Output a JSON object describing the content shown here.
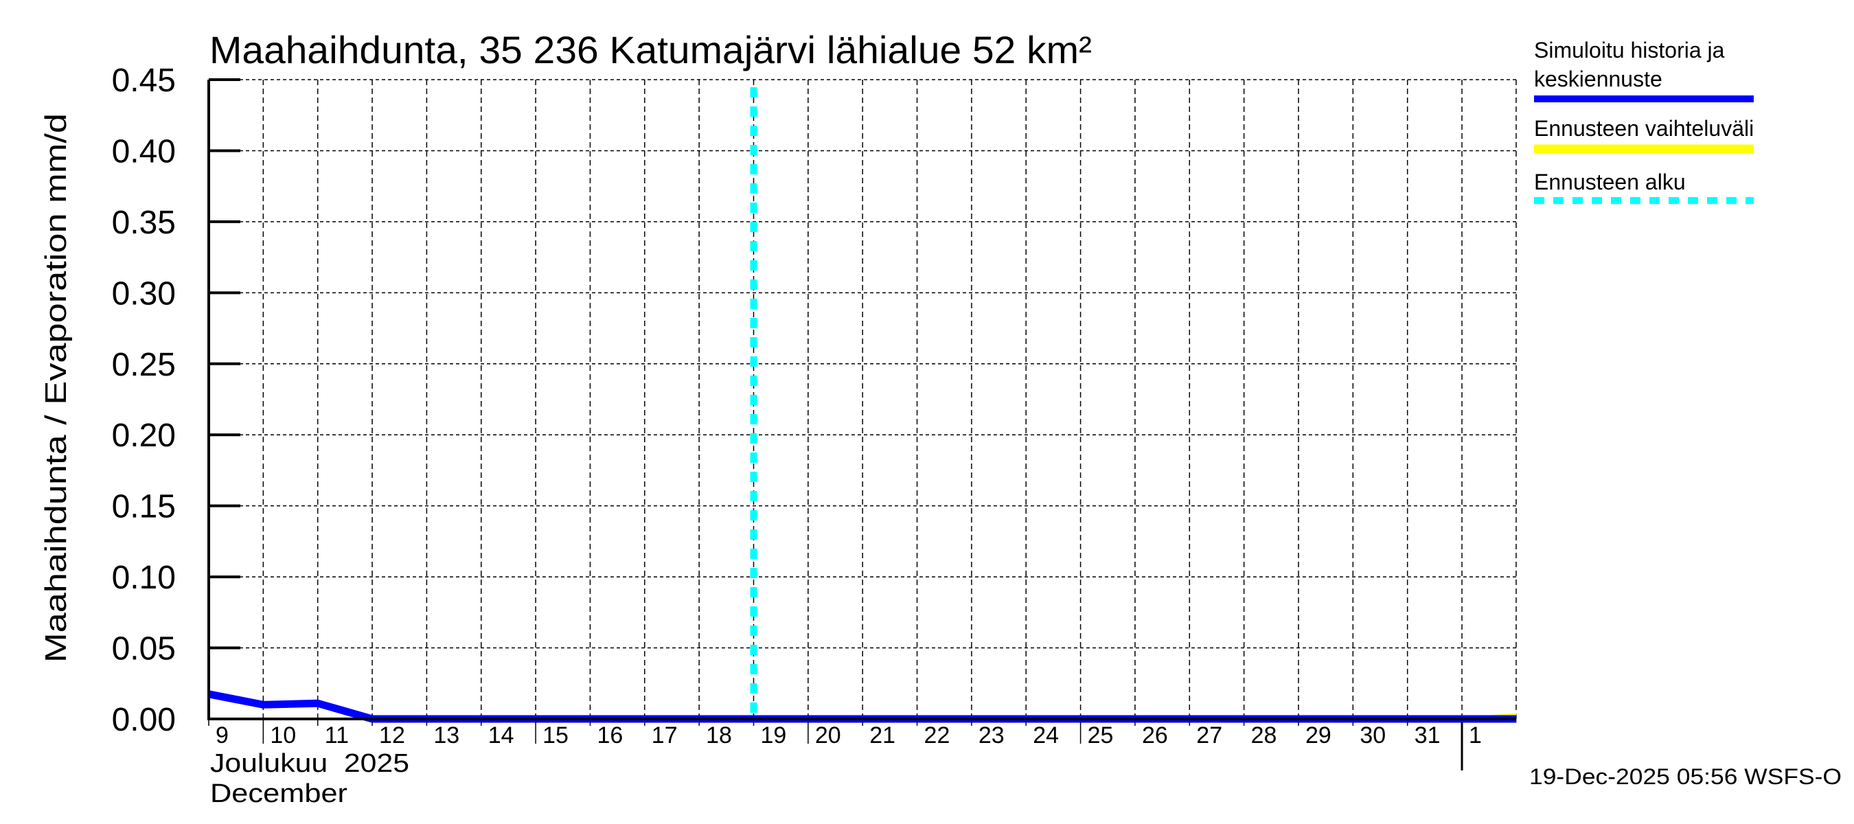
{
  "title": "Maahaihdunta, 35 236 Katumajärvi lähialue 52 km²",
  "y_axis_label": "Maahaihdunta / Evaporation   mm/d",
  "x_axis": {
    "month_label_fi": "Joulukuu  2025",
    "month_label_en": "December",
    "ticks": [
      "9",
      "10",
      "11",
      "12",
      "13",
      "14",
      "15",
      "16",
      "17",
      "18",
      "19",
      "20",
      "21",
      "22",
      "23",
      "24",
      "25",
      "26",
      "27",
      "28",
      "29",
      "30",
      "31",
      "1"
    ]
  },
  "legend": {
    "items": [
      {
        "label_line1": "Simuloitu historia ja",
        "label_line2": "keskiennuste",
        "color": "#0000ff",
        "style": "solid"
      },
      {
        "label_line1": "Ennusteen vaihteluväli",
        "label_line2": "",
        "color": "#ffff00",
        "style": "solid"
      },
      {
        "label_line1": "Ennusteen alku",
        "label_line2": "",
        "color": "#00ffff",
        "style": "dashed"
      }
    ]
  },
  "footer_timestamp": "19-Dec-2025 05:56 WSFS-O",
  "colors": {
    "history_line": "#0000ff",
    "range_band": "#ffff00",
    "forecast_start": "#00ffff",
    "grid": "#000000",
    "axis": "#000000"
  },
  "chart_data": {
    "type": "line",
    "title": "Maahaihdunta, 35 236 Katumajärvi lähialue 52 km²",
    "xlabel": "Joulukuu 2025 / December",
    "ylabel": "Maahaihdunta / Evaporation mm/d",
    "ylim": [
      0,
      0.45
    ],
    "yticks": [
      0.0,
      0.05,
      0.1,
      0.15,
      0.2,
      0.25,
      0.3,
      0.35,
      0.4,
      0.45
    ],
    "x_range_days": [
      0,
      24
    ],
    "x_start_date": "2025-12-09",
    "grid": true,
    "legend_position": "right",
    "forecast_start_day": 10,
    "forecast_start_date": "2025-12-19",
    "series": [
      {
        "name": "Simuloitu historia ja keskiennuste",
        "color": "#0000ff",
        "x": [
          0,
          1,
          2,
          3,
          4,
          5,
          6,
          7,
          8,
          9,
          10,
          11,
          12,
          13,
          14,
          15,
          16,
          17,
          18,
          19,
          20,
          21,
          22,
          23,
          24
        ],
        "values": [
          0.0175,
          0.01,
          0.011,
          0.0,
          0.0,
          0.0,
          0.0,
          0.0,
          0.0,
          0.0,
          0.0,
          0.0,
          0.0,
          0.0,
          0.0,
          0.0,
          0.0,
          0.0,
          0.0,
          0.0,
          0.0,
          0.0,
          0.0,
          0.0,
          0.0
        ]
      },
      {
        "name": "Ennusteen vaihteluväli",
        "color": "#ffff00",
        "type": "band",
        "x": [
          22.5,
          24
        ],
        "lower": [
          0.0,
          0.0
        ],
        "upper": [
          0.0,
          0.004
        ]
      }
    ]
  }
}
